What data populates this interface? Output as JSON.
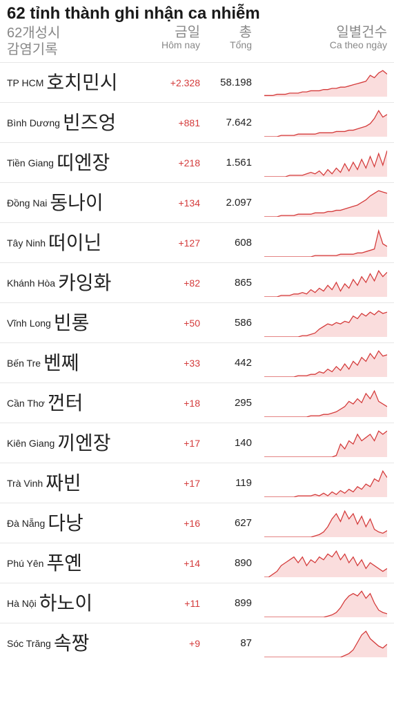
{
  "title": "62 tỉnh thành ghi nhận ca nhiễm",
  "header": {
    "name_kr1": "62개성시",
    "name_kr2": "감염기록",
    "today_kr": "금일",
    "today_vn": "Hôm nay",
    "total_kr": "총",
    "total_vn": "Tổng",
    "spark_kr": "일별건수",
    "spark_vn": "Ca theo ngày"
  },
  "colors": {
    "accent": "#d43a3a",
    "fill": "#f8cfcf",
    "text": "#222222",
    "muted": "#888888",
    "divider": "#e6e6e6",
    "background": "#ffffff"
  },
  "chart": {
    "type": "sparkline-area",
    "points_per_series": 30,
    "line_width": 1.2,
    "fill_opacity": 0.7
  },
  "rows": [
    {
      "name_vn": "TP HCM",
      "name_kr": "호치민시",
      "today": "+2.328",
      "total": "58.198",
      "series": [
        1,
        1,
        1,
        2,
        2,
        2,
        3,
        3,
        3,
        4,
        4,
        5,
        5,
        5,
        6,
        6,
        7,
        7,
        8,
        8,
        9,
        10,
        11,
        12,
        13,
        18,
        16,
        20,
        22,
        19
      ]
    },
    {
      "name_vn": "Bình Dương",
      "name_kr": "빈즈엉",
      "today": "+881",
      "total": "7.642",
      "series": [
        0,
        0,
        0,
        0,
        1,
        1,
        1,
        1,
        2,
        2,
        2,
        2,
        2,
        3,
        3,
        3,
        3,
        4,
        4,
        4,
        5,
        5,
        6,
        7,
        8,
        10,
        14,
        20,
        15,
        17
      ]
    },
    {
      "name_vn": "Tiền Giang",
      "name_kr": "띠엔장",
      "today": "+218",
      "total": "1.561",
      "series": [
        0,
        0,
        0,
        0,
        0,
        0,
        1,
        1,
        1,
        1,
        2,
        3,
        2,
        4,
        1,
        5,
        2,
        6,
        3,
        9,
        4,
        10,
        5,
        12,
        6,
        14,
        7,
        16,
        8,
        18
      ]
    },
    {
      "name_vn": "Đồng Nai",
      "name_kr": "동나이",
      "today": "+134",
      "total": "2.097",
      "series": [
        0,
        0,
        0,
        0,
        1,
        1,
        1,
        1,
        2,
        2,
        2,
        2,
        3,
        3,
        3,
        4,
        4,
        5,
        5,
        6,
        7,
        8,
        9,
        11,
        13,
        16,
        18,
        20,
        19,
        18
      ]
    },
    {
      "name_vn": "Tây Ninh",
      "name_kr": "떠이닌",
      "today": "+127",
      "total": "608",
      "series": [
        0,
        0,
        0,
        0,
        0,
        0,
        0,
        0,
        0,
        0,
        0,
        0,
        1,
        1,
        1,
        1,
        1,
        1,
        2,
        2,
        2,
        2,
        3,
        3,
        4,
        5,
        6,
        20,
        10,
        8
      ]
    },
    {
      "name_vn": "Khánh Hòa",
      "name_kr": "카잉화",
      "today": "+82",
      "total": "865",
      "series": [
        0,
        0,
        0,
        0,
        1,
        1,
        1,
        2,
        2,
        3,
        2,
        5,
        3,
        6,
        4,
        8,
        5,
        10,
        4,
        9,
        6,
        12,
        8,
        14,
        10,
        16,
        11,
        18,
        14,
        17
      ]
    },
    {
      "name_vn": "Vĩnh Long",
      "name_kr": "빈롱",
      "today": "+50",
      "total": "586",
      "series": [
        0,
        0,
        0,
        0,
        0,
        0,
        0,
        0,
        0,
        1,
        1,
        2,
        3,
        6,
        8,
        10,
        9,
        11,
        10,
        12,
        11,
        16,
        14,
        18,
        16,
        19,
        17,
        20,
        18,
        19
      ]
    },
    {
      "name_vn": "Bến Tre",
      "name_kr": "벤쩨",
      "today": "+33",
      "total": "442",
      "series": [
        0,
        0,
        0,
        0,
        0,
        0,
        0,
        0,
        1,
        1,
        1,
        2,
        2,
        4,
        3,
        6,
        4,
        8,
        5,
        10,
        6,
        12,
        9,
        15,
        12,
        18,
        14,
        20,
        16,
        17
      ]
    },
    {
      "name_vn": "Cần Thơ",
      "name_kr": "껀터",
      "today": "+18",
      "total": "295",
      "series": [
        0,
        0,
        0,
        0,
        0,
        0,
        0,
        0,
        0,
        0,
        0,
        1,
        1,
        1,
        2,
        2,
        3,
        4,
        6,
        8,
        12,
        10,
        14,
        11,
        18,
        14,
        20,
        12,
        10,
        8
      ]
    },
    {
      "name_vn": "Kiên Giang",
      "name_kr": "끼엔장",
      "today": "+17",
      "total": "140",
      "series": [
        0,
        0,
        0,
        0,
        0,
        0,
        0,
        0,
        0,
        0,
        0,
        0,
        0,
        0,
        0,
        0,
        0,
        1,
        8,
        5,
        10,
        8,
        14,
        10,
        12,
        14,
        10,
        16,
        14,
        16
      ]
    },
    {
      "name_vn": "Trà Vinh",
      "name_kr": "짜빈",
      "today": "+17",
      "total": "119",
      "series": [
        0,
        0,
        0,
        0,
        0,
        0,
        0,
        0,
        1,
        1,
        1,
        1,
        2,
        1,
        3,
        1,
        4,
        2,
        5,
        3,
        6,
        4,
        8,
        6,
        10,
        8,
        14,
        12,
        20,
        15
      ]
    },
    {
      "name_vn": "Đà Nẵng",
      "name_kr": "다낭",
      "today": "+16",
      "total": "627",
      "series": [
        0,
        0,
        0,
        0,
        0,
        0,
        0,
        0,
        0,
        0,
        0,
        0,
        1,
        2,
        4,
        8,
        14,
        18,
        12,
        20,
        14,
        18,
        10,
        16,
        8,
        14,
        6,
        4,
        3,
        5
      ]
    },
    {
      "name_vn": "Phú Yên",
      "name_kr": "푸옌",
      "today": "+14",
      "total": "890",
      "series": [
        0,
        0,
        2,
        4,
        8,
        10,
        12,
        14,
        10,
        14,
        8,
        12,
        10,
        14,
        12,
        16,
        14,
        18,
        12,
        16,
        10,
        14,
        8,
        12,
        6,
        10,
        8,
        6,
        4,
        6
      ]
    },
    {
      "name_vn": "Hà Nội",
      "name_kr": "하노이",
      "today": "+11",
      "total": "899",
      "series": [
        0,
        0,
        0,
        0,
        0,
        0,
        0,
        0,
        0,
        0,
        0,
        0,
        0,
        0,
        0,
        1,
        2,
        4,
        8,
        14,
        18,
        20,
        18,
        22,
        16,
        20,
        12,
        6,
        4,
        3
      ]
    },
    {
      "name_vn": "Sóc Trăng",
      "name_kr": "속짱",
      "today": "+9",
      "total": "87",
      "series": [
        0,
        0,
        0,
        0,
        0,
        0,
        0,
        0,
        0,
        0,
        0,
        0,
        0,
        0,
        0,
        0,
        0,
        0,
        0,
        1,
        2,
        4,
        8,
        12,
        14,
        10,
        8,
        6,
        5,
        7
      ]
    }
  ]
}
